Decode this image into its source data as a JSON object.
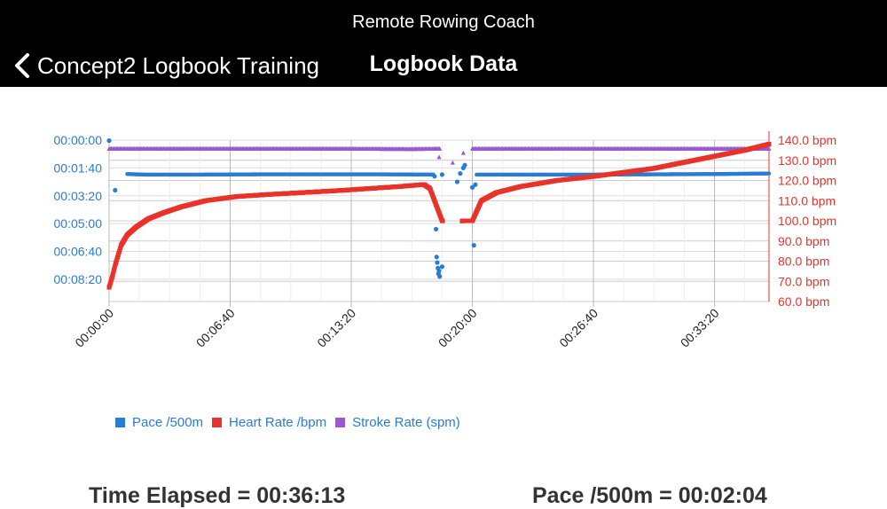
{
  "header": {
    "app_title": "Remote Rowing Coach",
    "back_label": "Concept2 Logbook Training",
    "page_title": "Logbook Data"
  },
  "colors": {
    "pace": "#2a7bd6",
    "heart_rate": "#e8332a",
    "stroke_rate": "#9b59d0",
    "nav_background": "#000000"
  },
  "chart_data": {
    "type": "scatter",
    "x_ticks": [
      "00:00:00",
      "00:06:40",
      "00:13:20",
      "00:20:00",
      "00:26:40",
      "00:33:20"
    ],
    "y_left_ticks": [
      "00:00:00",
      "00:01:40",
      "00:03:20",
      "00:05:00",
      "00:06:40",
      "00:08:20"
    ],
    "y_right_ticks": [
      "140.0 bpm",
      "130.0 bpm",
      "120.0 bpm",
      "110.0 bpm",
      "100.0 bpm",
      "90.0 bpm",
      "80.0 bpm",
      "70.0 bpm",
      "60.0 bpm"
    ],
    "x_range_s": [
      0,
      2180
    ],
    "pace_range_s": [
      0,
      580
    ],
    "hr_range": [
      60,
      140
    ],
    "legend": [
      "Pace /500m",
      "Heart Rate /bpm",
      "Stroke Rate (spm)"
    ],
    "series": [
      {
        "name": "Pace /500m",
        "axis": "left",
        "points": [
          [
            0,
            2
          ],
          [
            20,
            180
          ],
          [
            60,
            122
          ],
          [
            120,
            124
          ],
          [
            300,
            124
          ],
          [
            500,
            123
          ],
          [
            700,
            123
          ],
          [
            900,
            123
          ],
          [
            1100,
            124
          ],
          [
            1300,
            124
          ],
          [
            1600,
            124
          ],
          [
            1800,
            123
          ],
          [
            2000,
            122
          ],
          [
            2180,
            120
          ],
          [
            1075,
            130
          ],
          [
            1080,
            320
          ],
          [
            1082,
            420
          ],
          [
            1084,
            440
          ],
          [
            1086,
            460
          ],
          [
            1088,
            480
          ],
          [
            1090,
            470
          ],
          [
            1092,
            490
          ],
          [
            1100,
            455
          ],
          [
            1150,
            150
          ],
          [
            1160,
            120
          ],
          [
            1170,
            100
          ],
          [
            1175,
            90
          ],
          [
            1200,
            170
          ],
          [
            1205,
            378
          ],
          [
            1210,
            160
          ]
        ]
      },
      {
        "name": "Heart Rate /bpm",
        "axis": "right",
        "points": [
          [
            0,
            67
          ],
          [
            10,
            72
          ],
          [
            20,
            78
          ],
          [
            40,
            88
          ],
          [
            60,
            93
          ],
          [
            90,
            97
          ],
          [
            130,
            101
          ],
          [
            180,
            104
          ],
          [
            240,
            107
          ],
          [
            320,
            110
          ],
          [
            420,
            112
          ],
          [
            520,
            113
          ],
          [
            640,
            114
          ],
          [
            760,
            115
          ],
          [
            860,
            116
          ],
          [
            960,
            117
          ],
          [
            1040,
            118
          ],
          [
            1060,
            116
          ],
          [
            1070,
            112
          ],
          [
            1080,
            108
          ],
          [
            1100,
            100
          ],
          [
            1130,
            99
          ],
          [
            1170,
            100
          ],
          [
            1200,
            100
          ],
          [
            1230,
            110
          ],
          [
            1280,
            114
          ],
          [
            1360,
            117
          ],
          [
            1480,
            120
          ],
          [
            1600,
            122
          ],
          [
            1700,
            124
          ],
          [
            1800,
            126
          ],
          [
            1900,
            129
          ],
          [
            2000,
            132
          ],
          [
            2100,
            135
          ],
          [
            2180,
            138
          ]
        ]
      },
      {
        "name": "Stroke Rate (spm)",
        "axis": "left",
        "points": [
          [
            0,
            30
          ],
          [
            200,
            30
          ],
          [
            400,
            30
          ],
          [
            600,
            30
          ],
          [
            800,
            30
          ],
          [
            1000,
            31
          ],
          [
            1080,
            30
          ],
          [
            1100,
            30
          ],
          [
            1140,
            60
          ],
          [
            1200,
            30
          ],
          [
            1400,
            30
          ],
          [
            1600,
            30
          ],
          [
            1800,
            30
          ],
          [
            2000,
            30
          ],
          [
            2180,
            30
          ]
        ]
      }
    ]
  },
  "stats": {
    "time_elapsed": "Time Elapsed = 00:36:13",
    "pace": "Pace /500m = 00:02:04"
  }
}
